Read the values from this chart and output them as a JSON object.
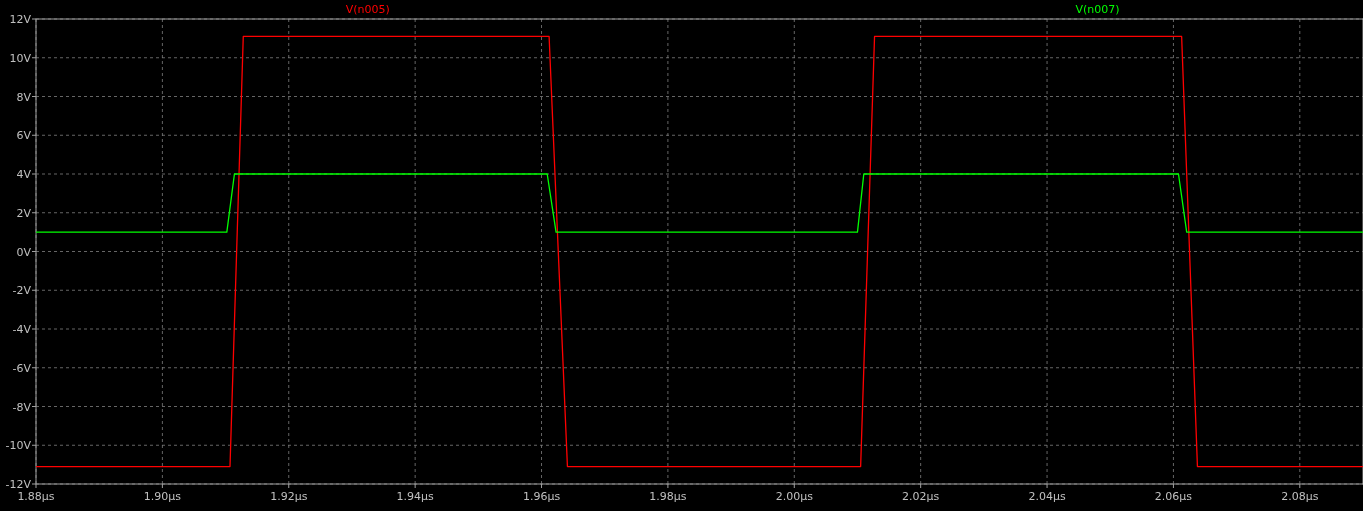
{
  "chart_data": {
    "type": "line",
    "x": [
      1.88,
      1.9107,
      1.9128,
      1.9612,
      1.9641,
      2.0105,
      2.0127,
      2.0613,
      2.0638,
      2.09
    ],
    "series": [
      {
        "name": "V(n005)",
        "color": "#ff0000",
        "values": [
          -11.1,
          -11.1,
          11.1,
          11.1,
          -11.1,
          -11.1,
          11.1,
          11.1,
          -11.1,
          -11.1
        ]
      },
      {
        "name": "V(n007)",
        "color": "#00ff00",
        "x": [
          1.88,
          1.9102,
          1.9114,
          1.9609,
          1.9623,
          2.01,
          2.011,
          2.0608,
          2.0621,
          2.09
        ],
        "values": [
          1,
          1,
          4,
          4,
          1,
          1,
          4,
          4,
          1,
          1
        ]
      }
    ],
    "xlim": [
      1.88,
      2.09
    ],
    "ylim": [
      -12,
      12
    ],
    "xticks": [
      {
        "value": 1.88,
        "label": "1.88µs"
      },
      {
        "value": 1.9,
        "label": "1.90µs"
      },
      {
        "value": 1.92,
        "label": "1.92µs"
      },
      {
        "value": 1.94,
        "label": "1.94µs"
      },
      {
        "value": 1.96,
        "label": "1.96µs"
      },
      {
        "value": 1.98,
        "label": "1.98µs"
      },
      {
        "value": 2.0,
        "label": "2.00µs"
      },
      {
        "value": 2.02,
        "label": "2.02µs"
      },
      {
        "value": 2.04,
        "label": "2.04µs"
      },
      {
        "value": 2.06,
        "label": "2.06µs"
      },
      {
        "value": 2.08,
        "label": "2.08µs"
      }
    ],
    "yticks": [
      {
        "value": -12,
        "label": "-12V"
      },
      {
        "value": -10,
        "label": "-10V"
      },
      {
        "value": -8,
        "label": "-8V"
      },
      {
        "value": -6,
        "label": "-6V"
      },
      {
        "value": -4,
        "label": "-4V"
      },
      {
        "value": -2,
        "label": "-2V"
      },
      {
        "value": 0,
        "label": "0V"
      },
      {
        "value": 2,
        "label": "2V"
      },
      {
        "value": 4,
        "label": "4V"
      },
      {
        "value": 6,
        "label": "6V"
      },
      {
        "value": 8,
        "label": "8V"
      },
      {
        "value": 10,
        "label": "10V"
      },
      {
        "value": 12,
        "label": "12V"
      }
    ],
    "grid": true,
    "legend": "top",
    "marker": "none",
    "line_style": "solid"
  }
}
